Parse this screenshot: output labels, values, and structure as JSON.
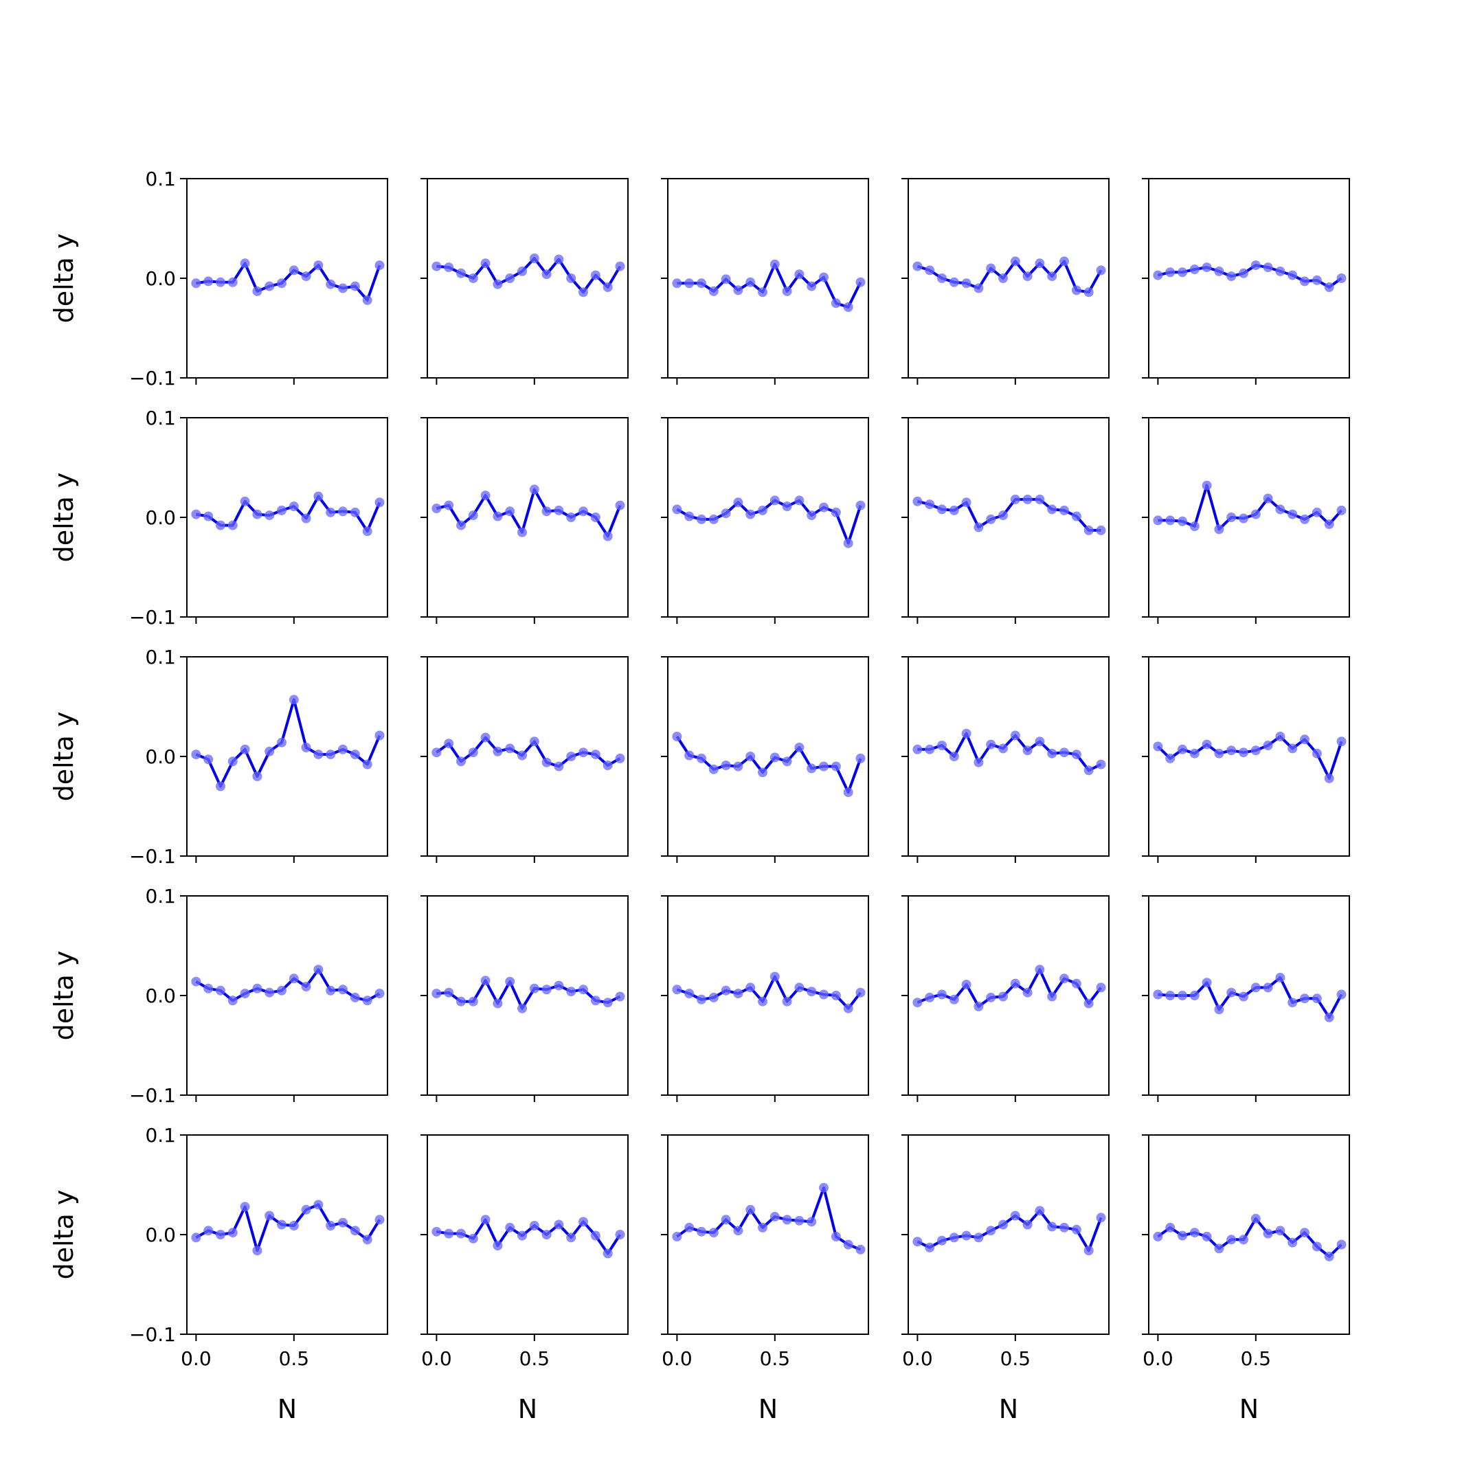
{
  "chart_data": {
    "type": "line",
    "layout": {
      "rows": 5,
      "cols": 5
    },
    "xlabel": "N",
    "ylabel": "delta y",
    "xlim": [
      -0.047,
      0.978
    ],
    "ylim": [
      -0.1,
      0.1
    ],
    "xticks": [
      0.0,
      0.5
    ],
    "xtick_labels": [
      "0.0",
      "0.5"
    ],
    "yticks": [
      -0.1,
      0.0,
      0.1
    ],
    "ytick_labels": [
      "−0.1",
      "0.0",
      "0.1"
    ],
    "line_color": "#0000ee",
    "marker_color": "#6666ff",
    "x": [
      0.0,
      0.0625,
      0.125,
      0.1875,
      0.25,
      0.3125,
      0.375,
      0.4375,
      0.5,
      0.5625,
      0.625,
      0.6875,
      0.75,
      0.8125,
      0.875,
      0.9375
    ],
    "panels": [
      {
        "y": [
          -0.005,
          -0.003,
          -0.004,
          -0.004,
          0.015,
          -0.013,
          -0.008,
          -0.005,
          0.008,
          0.002,
          0.013,
          -0.006,
          -0.01,
          -0.008,
          -0.022,
          0.013
        ]
      },
      {
        "y": [
          0.012,
          0.011,
          0.005,
          0.0,
          0.015,
          -0.006,
          0.0,
          0.007,
          0.02,
          0.004,
          0.019,
          0.0,
          -0.014,
          0.003,
          -0.009,
          0.012
        ]
      },
      {
        "y": [
          -0.005,
          -0.005,
          -0.005,
          -0.013,
          -0.001,
          -0.012,
          -0.004,
          -0.014,
          0.014,
          -0.013,
          0.004,
          -0.008,
          0.001,
          -0.025,
          -0.029,
          -0.004
        ]
      },
      {
        "y": [
          0.012,
          0.008,
          0.0,
          -0.004,
          -0.005,
          -0.01,
          0.01,
          0.0,
          0.017,
          0.002,
          0.015,
          0.002,
          0.017,
          -0.012,
          -0.014,
          0.008
        ]
      },
      {
        "y": [
          0.003,
          0.006,
          0.006,
          0.009,
          0.011,
          0.007,
          0.002,
          0.005,
          0.013,
          0.011,
          0.007,
          0.003,
          -0.003,
          -0.002,
          -0.009,
          0.0
        ]
      },
      {
        "y": [
          0.003,
          0.001,
          -0.008,
          -0.008,
          0.016,
          0.003,
          0.002,
          0.007,
          0.011,
          -0.001,
          0.021,
          0.005,
          0.006,
          0.005,
          -0.014,
          0.015
        ]
      },
      {
        "y": [
          0.009,
          0.012,
          -0.008,
          0.002,
          0.022,
          0.001,
          0.006,
          -0.015,
          0.028,
          0.006,
          0.007,
          0.0,
          0.006,
          0.0,
          -0.019,
          0.012
        ]
      },
      {
        "y": [
          0.008,
          0.001,
          -0.002,
          -0.002,
          0.004,
          0.015,
          0.003,
          0.007,
          0.017,
          0.011,
          0.017,
          0.002,
          0.01,
          0.005,
          -0.026,
          0.012
        ]
      },
      {
        "y": [
          0.016,
          0.013,
          0.008,
          0.007,
          0.015,
          -0.01,
          -0.002,
          0.002,
          0.018,
          0.018,
          0.018,
          0.008,
          0.007,
          0.001,
          -0.013,
          -0.013
        ]
      },
      {
        "y": [
          -0.003,
          -0.003,
          -0.004,
          -0.009,
          0.032,
          -0.012,
          0.0,
          -0.001,
          0.003,
          0.019,
          0.008,
          0.003,
          -0.002,
          0.005,
          -0.007,
          0.007
        ]
      },
      {
        "y": [
          0.002,
          -0.003,
          -0.03,
          -0.005,
          0.007,
          -0.02,
          0.005,
          0.014,
          0.057,
          0.009,
          0.002,
          0.002,
          0.007,
          0.002,
          -0.008,
          0.021
        ]
      },
      {
        "y": [
          0.004,
          0.013,
          -0.005,
          0.004,
          0.019,
          0.005,
          0.008,
          0.001,
          0.015,
          -0.006,
          -0.01,
          0.0,
          0.004,
          0.002,
          -0.009,
          -0.002
        ]
      },
      {
        "y": [
          0.02,
          0.001,
          -0.002,
          -0.013,
          -0.009,
          -0.01,
          0.0,
          -0.016,
          -0.001,
          -0.005,
          0.009,
          -0.012,
          -0.01,
          -0.01,
          -0.036,
          -0.002
        ]
      },
      {
        "y": [
          0.007,
          0.007,
          0.011,
          0.0,
          0.023,
          -0.006,
          0.012,
          0.008,
          0.021,
          0.006,
          0.015,
          0.003,
          0.004,
          0.002,
          -0.014,
          -0.008
        ]
      },
      {
        "y": [
          0.01,
          -0.002,
          0.007,
          0.003,
          0.012,
          0.003,
          0.006,
          0.004,
          0.006,
          0.011,
          0.02,
          0.008,
          0.017,
          0.003,
          -0.022,
          0.015
        ]
      },
      {
        "y": [
          0.014,
          0.007,
          0.005,
          -0.005,
          0.002,
          0.007,
          0.003,
          0.005,
          0.017,
          0.009,
          0.026,
          0.005,
          0.006,
          -0.002,
          -0.005,
          0.002
        ]
      },
      {
        "y": [
          0.002,
          0.003,
          -0.006,
          -0.006,
          0.015,
          -0.008,
          0.014,
          -0.013,
          0.007,
          0.006,
          0.01,
          0.004,
          0.006,
          -0.005,
          -0.007,
          -0.001
        ]
      },
      {
        "y": [
          0.006,
          0.002,
          -0.004,
          -0.002,
          0.005,
          0.002,
          0.008,
          -0.006,
          0.019,
          -0.006,
          0.008,
          0.004,
          0.001,
          0.0,
          -0.013,
          0.003
        ]
      },
      {
        "y": [
          -0.007,
          -0.002,
          0.001,
          -0.004,
          0.011,
          -0.011,
          -0.002,
          -0.001,
          0.012,
          0.003,
          0.026,
          -0.001,
          0.017,
          0.012,
          -0.008,
          0.008
        ]
      },
      {
        "y": [
          0.001,
          0.0,
          0.0,
          0.0,
          0.013,
          -0.014,
          0.003,
          -0.001,
          0.008,
          0.008,
          0.018,
          -0.007,
          -0.003,
          -0.003,
          -0.022,
          0.001
        ]
      },
      {
        "y": [
          -0.003,
          0.004,
          0.0,
          0.002,
          0.028,
          -0.016,
          0.019,
          0.01,
          0.009,
          0.025,
          0.03,
          0.009,
          0.012,
          0.004,
          -0.005,
          0.015
        ]
      },
      {
        "y": [
          0.003,
          0.001,
          0.001,
          -0.004,
          0.015,
          -0.011,
          0.007,
          -0.001,
          0.009,
          0.0,
          0.01,
          -0.003,
          0.013,
          -0.001,
          -0.019,
          0.0
        ]
      },
      {
        "y": [
          -0.002,
          0.007,
          0.003,
          0.002,
          0.015,
          0.004,
          0.025,
          0.007,
          0.018,
          0.015,
          0.014,
          0.013,
          0.047,
          -0.002,
          -0.01,
          -0.015
        ]
      },
      {
        "y": [
          -0.007,
          -0.013,
          -0.006,
          -0.003,
          -0.001,
          -0.003,
          0.004,
          0.01,
          0.019,
          0.01,
          0.024,
          0.008,
          0.007,
          0.005,
          -0.016,
          0.017
        ]
      },
      {
        "y": [
          -0.002,
          0.007,
          -0.001,
          0.002,
          -0.002,
          -0.014,
          -0.005,
          -0.005,
          0.016,
          0.001,
          0.004,
          -0.008,
          0.002,
          -0.012,
          -0.022,
          -0.01
        ]
      }
    ]
  }
}
